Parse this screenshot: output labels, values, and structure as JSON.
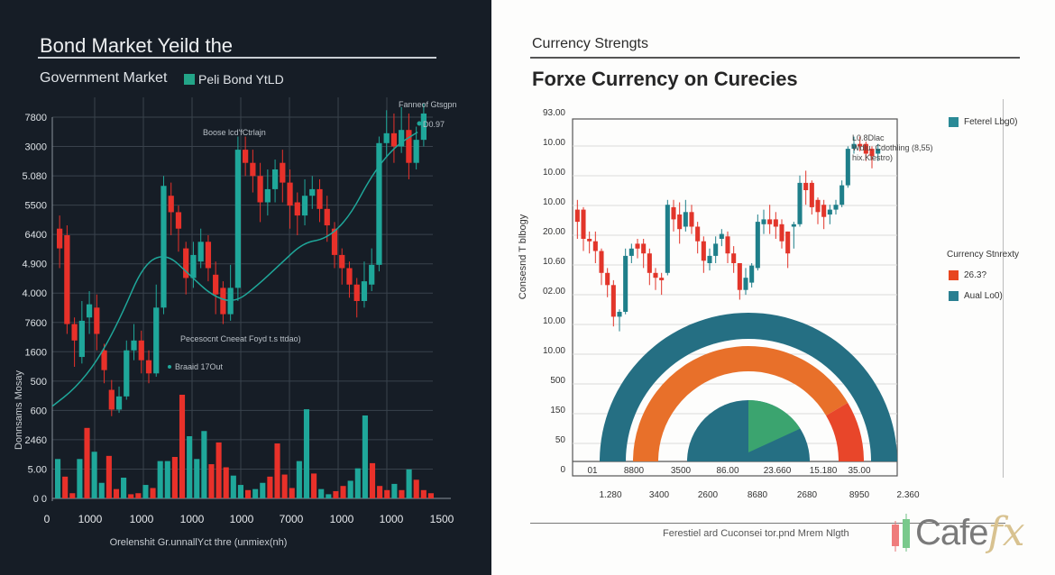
{
  "left_panel": {
    "title": "Bond Market Yeild the",
    "subtitle": "Government Market",
    "legend_label": "Peli Bond YtLD",
    "legend_color": "#23a588",
    "annotations": {
      "top_right": "Fanneof Gtsgpn",
      "value": "D0.97",
      "center_top": "Boose lcd'fCtrlajn",
      "middle": "Pecesocnt Cneeat Foyd t.s ttdao)",
      "lower": "Braaid 17Out"
    }
  },
  "right_panel": {
    "title_small": "Currency Strengts",
    "title_large": "Forxe Currency on Curecies",
    "legend_top": {
      "label": "Feterel Lbg0)",
      "color": "#2a8a96"
    },
    "legend_group_title": "Currency Stnrexty",
    "legend_items": [
      {
        "label": "26.3?",
        "color": "#e8461f"
      },
      {
        "label": "Aual Lo0)",
        "color": "#2a7f91"
      }
    ],
    "annotation": [
      "L0.8Dlac",
      "Wdlu. Cdothling (8,55)",
      "hix.Kiestro)"
    ],
    "footer": "Ferestiel ard Cuconsei tor.pnd Mrem Nlgth",
    "logo": {
      "text": "Cafe",
      "accent": "fx"
    }
  },
  "chart_data": [
    {
      "type": "candlestick",
      "title": "Bond Market Yeild the",
      "subtitle": "Government Market",
      "ylabel": "Donnsams Mosay",
      "xlabel": "Orelenshit Gr.unnallYct thre (unmiex(nh)",
      "y_ticks": [
        "7800",
        "3000",
        "5.080",
        "5500",
        "6400",
        "4.900",
        "4.000",
        "7600",
        "1600",
        "500",
        "600",
        "2460",
        "5.00",
        "0 0"
      ],
      "x_ticks": [
        "0",
        "1000",
        "1000",
        "1000",
        "1000",
        "7000",
        "1000",
        "1000",
        "1500"
      ],
      "colors": {
        "up": "#1fa79a",
        "down": "#e8312a",
        "trend": "#1fa79a",
        "grid": "#39424c"
      },
      "candles": [
        [
          0.56,
          0.62,
          0.5,
          0.66,
          "d"
        ],
        [
          0.6,
          0.33,
          0.3,
          0.63,
          "d"
        ],
        [
          0.33,
          0.28,
          0.2,
          0.35,
          "d"
        ],
        [
          0.23,
          0.34,
          0.21,
          0.4,
          "u"
        ],
        [
          0.35,
          0.39,
          0.3,
          0.43,
          "u"
        ],
        [
          0.38,
          0.3,
          0.25,
          0.42,
          "d"
        ],
        [
          0.25,
          0.19,
          0.15,
          0.27,
          "d"
        ],
        [
          0.13,
          0.07,
          0.05,
          0.16,
          "d"
        ],
        [
          0.07,
          0.11,
          0.06,
          0.14,
          "u"
        ],
        [
          0.11,
          0.25,
          0.1,
          0.28,
          "u"
        ],
        [
          0.25,
          0.28,
          0.22,
          0.33,
          "u"
        ],
        [
          0.28,
          0.22,
          0.18,
          0.31,
          "d"
        ],
        [
          0.22,
          0.18,
          0.15,
          0.25,
          "d"
        ],
        [
          0.18,
          0.38,
          0.17,
          0.45,
          "u"
        ],
        [
          0.38,
          0.75,
          0.36,
          0.78,
          "u"
        ],
        [
          0.72,
          0.67,
          0.6,
          0.76,
          "d"
        ],
        [
          0.67,
          0.62,
          0.55,
          0.69,
          "d"
        ],
        [
          0.56,
          0.47,
          0.42,
          0.58,
          "d"
        ],
        [
          0.47,
          0.54,
          0.44,
          0.58,
          "u"
        ],
        [
          0.52,
          0.58,
          0.5,
          0.62,
          "u"
        ],
        [
          0.58,
          0.5,
          0.46,
          0.6,
          "d"
        ],
        [
          0.48,
          0.42,
          0.36,
          0.52,
          "d"
        ],
        [
          0.44,
          0.36,
          0.33,
          0.46,
          "d"
        ],
        [
          0.36,
          0.44,
          0.34,
          0.51,
          "u"
        ],
        [
          0.44,
          0.86,
          0.4,
          0.9,
          "u"
        ],
        [
          0.86,
          0.82,
          0.78,
          0.9,
          "d"
        ],
        [
          0.82,
          0.78,
          0.73,
          0.86,
          "d"
        ],
        [
          0.78,
          0.7,
          0.64,
          0.82,
          "d"
        ],
        [
          0.7,
          0.74,
          0.66,
          0.8,
          "u"
        ],
        [
          0.74,
          0.8,
          0.7,
          0.83,
          "u"
        ],
        [
          0.82,
          0.76,
          0.7,
          0.86,
          "d"
        ],
        [
          0.76,
          0.69,
          0.62,
          0.8,
          "d"
        ],
        [
          0.7,
          0.66,
          0.6,
          0.73,
          "d"
        ],
        [
          0.66,
          0.72,
          0.63,
          0.77,
          "u"
        ],
        [
          0.72,
          0.74,
          0.68,
          0.78,
          "u"
        ],
        [
          0.74,
          0.68,
          0.64,
          0.77,
          "d"
        ],
        [
          0.68,
          0.63,
          0.58,
          0.72,
          "d"
        ],
        [
          0.62,
          0.54,
          0.5,
          0.64,
          "d"
        ],
        [
          0.54,
          0.5,
          0.45,
          0.56,
          "d"
        ],
        [
          0.5,
          0.45,
          0.41,
          0.52,
          "d"
        ],
        [
          0.45,
          0.4,
          0.35,
          0.47,
          "d"
        ],
        [
          0.4,
          0.46,
          0.38,
          0.52,
          "u"
        ],
        [
          0.45,
          0.51,
          0.43,
          0.56,
          "u"
        ],
        [
          0.51,
          0.88,
          0.49,
          0.9,
          "u"
        ],
        [
          0.88,
          0.91,
          0.84,
          0.98,
          "u"
        ],
        [
          0.91,
          0.87,
          0.82,
          0.97,
          "d"
        ],
        [
          0.87,
          0.92,
          0.85,
          0.99,
          "u"
        ],
        [
          0.92,
          0.82,
          0.77,
          0.97,
          "d"
        ],
        [
          0.82,
          0.89,
          0.8,
          0.93,
          "u"
        ],
        [
          0.89,
          0.97,
          0.87,
          1.0,
          "u"
        ]
      ],
      "trend_line": [
        [
          0,
          0.15
        ],
        [
          0.06,
          0.2
        ],
        [
          0.12,
          0.28
        ],
        [
          0.18,
          0.4
        ],
        [
          0.24,
          0.55
        ],
        [
          0.3,
          0.58
        ],
        [
          0.36,
          0.52
        ],
        [
          0.42,
          0.46
        ],
        [
          0.48,
          0.44
        ],
        [
          0.54,
          0.49
        ],
        [
          0.6,
          0.55
        ],
        [
          0.66,
          0.61
        ],
        [
          0.72,
          0.62
        ],
        [
          0.78,
          0.68
        ],
        [
          0.84,
          0.8
        ],
        [
          0.9,
          0.88
        ],
        [
          0.96,
          0.92
        ]
      ],
      "volume": [
        [
          0.38,
          "u"
        ],
        [
          0.21,
          "d"
        ],
        [
          0.05,
          "d"
        ],
        [
          0.38,
          "u"
        ],
        [
          0.68,
          "d"
        ],
        [
          0.45,
          "u"
        ],
        [
          0.15,
          "u"
        ],
        [
          0.41,
          "d"
        ],
        [
          0.09,
          "d"
        ],
        [
          0.2,
          "u"
        ],
        [
          0.04,
          "d"
        ],
        [
          0.05,
          "d"
        ],
        [
          0.13,
          "u"
        ],
        [
          0.1,
          "d"
        ],
        [
          0.36,
          "u"
        ],
        [
          0.36,
          "u"
        ],
        [
          0.4,
          "d"
        ],
        [
          1.0,
          "d"
        ],
        [
          0.6,
          "u"
        ],
        [
          0.38,
          "u"
        ],
        [
          0.65,
          "u"
        ],
        [
          0.33,
          "d"
        ],
        [
          0.54,
          "d"
        ],
        [
          0.3,
          "d"
        ],
        [
          0.22,
          "u"
        ],
        [
          0.13,
          "u"
        ],
        [
          0.08,
          "d"
        ],
        [
          0.09,
          "u"
        ],
        [
          0.15,
          "u"
        ],
        [
          0.21,
          "d"
        ],
        [
          0.53,
          "d"
        ],
        [
          0.23,
          "d"
        ],
        [
          0.1,
          "d"
        ],
        [
          0.36,
          "u"
        ],
        [
          0.86,
          "u"
        ],
        [
          0.24,
          "d"
        ],
        [
          0.09,
          "u"
        ],
        [
          0.04,
          "u"
        ],
        [
          0.07,
          "d"
        ],
        [
          0.12,
          "d"
        ],
        [
          0.17,
          "u"
        ],
        [
          0.29,
          "u"
        ],
        [
          0.8,
          "u"
        ],
        [
          0.34,
          "d"
        ],
        [
          0.12,
          "d"
        ],
        [
          0.08,
          "d"
        ],
        [
          0.14,
          "u"
        ],
        [
          0.08,
          "d"
        ],
        [
          0.28,
          "u"
        ],
        [
          0.18,
          "d"
        ],
        [
          0.08,
          "d"
        ],
        [
          0.05,
          "d"
        ]
      ]
    },
    {
      "type": "candlestick",
      "title": "Forxe Currency on Curecies",
      "subtitle": "Currency Strengts",
      "ylabel": "Consesnd T blbogy",
      "y_ticks": [
        "93.00",
        "10.00",
        "10.00",
        "10.00",
        "20.00",
        "10.60",
        "02.00",
        "10.00",
        "10.00",
        "500",
        "150",
        "50",
        "0"
      ],
      "x_ticks_inner": [
        "01",
        "8800",
        "3500",
        "86.00",
        "23.660",
        "15.180",
        "35.00"
      ],
      "x_ticks_outer": [
        "1.280",
        "3400",
        "2600",
        "8680",
        "2680",
        "8950",
        "2.360"
      ],
      "colors": {
        "up": "#1f7f8a",
        "down": "#e2352a",
        "grid": "#dadada"
      },
      "candles": [
        [
          0.62,
          0.57,
          0.5,
          0.66,
          "d"
        ],
        [
          0.62,
          0.5,
          0.45,
          0.63,
          "d"
        ],
        [
          0.5,
          0.49,
          0.44,
          0.53,
          "d"
        ],
        [
          0.49,
          0.45,
          0.4,
          0.53,
          "d"
        ],
        [
          0.45,
          0.36,
          0.31,
          0.46,
          "d"
        ],
        [
          0.36,
          0.31,
          0.26,
          0.38,
          "d"
        ],
        [
          0.31,
          0.18,
          0.14,
          0.33,
          "d"
        ],
        [
          0.18,
          0.2,
          0.12,
          0.21,
          "u"
        ],
        [
          0.2,
          0.43,
          0.19,
          0.46,
          "u"
        ],
        [
          0.43,
          0.46,
          0.4,
          0.48,
          "u"
        ],
        [
          0.46,
          0.48,
          0.42,
          0.5,
          "d"
        ],
        [
          0.48,
          0.44,
          0.38,
          0.5,
          "d"
        ],
        [
          0.44,
          0.36,
          0.31,
          0.46,
          "d"
        ],
        [
          0.36,
          0.34,
          0.29,
          0.38,
          "d"
        ],
        [
          0.34,
          0.33,
          0.27,
          0.36,
          "d"
        ],
        [
          0.36,
          0.64,
          0.35,
          0.66,
          "u"
        ],
        [
          0.63,
          0.58,
          0.53,
          0.66,
          "d"
        ],
        [
          0.6,
          0.54,
          0.48,
          0.65,
          "d"
        ],
        [
          0.55,
          0.61,
          0.53,
          0.66,
          "u"
        ],
        [
          0.61,
          0.55,
          0.52,
          0.64,
          "d"
        ],
        [
          0.55,
          0.49,
          0.44,
          0.57,
          "d"
        ],
        [
          0.49,
          0.41,
          0.36,
          0.51,
          "d"
        ],
        [
          0.4,
          0.43,
          0.37,
          0.46,
          "u"
        ],
        [
          0.43,
          0.48,
          0.4,
          0.51,
          "u"
        ],
        [
          0.5,
          0.52,
          0.47,
          0.54,
          "u"
        ],
        [
          0.51,
          0.44,
          0.4,
          0.53,
          "d"
        ],
        [
          0.44,
          0.4,
          0.36,
          0.47,
          "d"
        ],
        [
          0.4,
          0.29,
          0.25,
          0.4,
          "d"
        ],
        [
          0.29,
          0.34,
          0.27,
          0.38,
          "u"
        ],
        [
          0.32,
          0.39,
          0.3,
          0.4,
          "u"
        ],
        [
          0.38,
          0.57,
          0.37,
          0.6,
          "u"
        ],
        [
          0.56,
          0.58,
          0.52,
          0.62,
          "u"
        ],
        [
          0.58,
          0.56,
          0.52,
          0.64,
          "d"
        ],
        [
          0.58,
          0.55,
          0.5,
          0.61,
          "d"
        ],
        [
          0.56,
          0.49,
          0.46,
          0.58,
          "d"
        ],
        [
          0.53,
          0.44,
          0.38,
          0.53,
          "d"
        ],
        [
          0.55,
          0.56,
          0.46,
          0.57,
          "u"
        ],
        [
          0.56,
          0.73,
          0.55,
          0.76,
          "u"
        ],
        [
          0.73,
          0.7,
          0.64,
          0.78,
          "d"
        ],
        [
          0.73,
          0.63,
          0.6,
          0.74,
          "d"
        ],
        [
          0.66,
          0.61,
          0.56,
          0.67,
          "d"
        ],
        [
          0.64,
          0.59,
          0.54,
          0.66,
          "d"
        ],
        [
          0.6,
          0.62,
          0.56,
          0.64,
          "u"
        ],
        [
          0.62,
          0.64,
          0.6,
          0.66,
          "u"
        ],
        [
          0.64,
          0.72,
          0.63,
          0.74,
          "u"
        ],
        [
          0.72,
          0.87,
          0.71,
          0.88,
          "u"
        ],
        [
          0.87,
          0.89,
          0.85,
          0.92,
          "u"
        ],
        [
          0.89,
          0.88,
          0.86,
          0.92,
          "d"
        ],
        [
          0.89,
          0.85,
          0.82,
          0.9,
          "d"
        ],
        [
          0.87,
          0.84,
          0.79,
          0.88,
          "d"
        ],
        [
          0.85,
          0.87,
          0.82,
          0.89,
          "u"
        ]
      ],
      "gauge": {
        "outer_ring": {
          "color": "#256f83"
        },
        "middle_ring": {
          "color": "#e8702a",
          "red_segment_color": "#e8462a",
          "red_fraction": 0.17
        },
        "inner_pie": {
          "color": "#256f83",
          "slice_color": "#3ba46f",
          "slice_fraction": 0.2
        }
      }
    }
  ]
}
